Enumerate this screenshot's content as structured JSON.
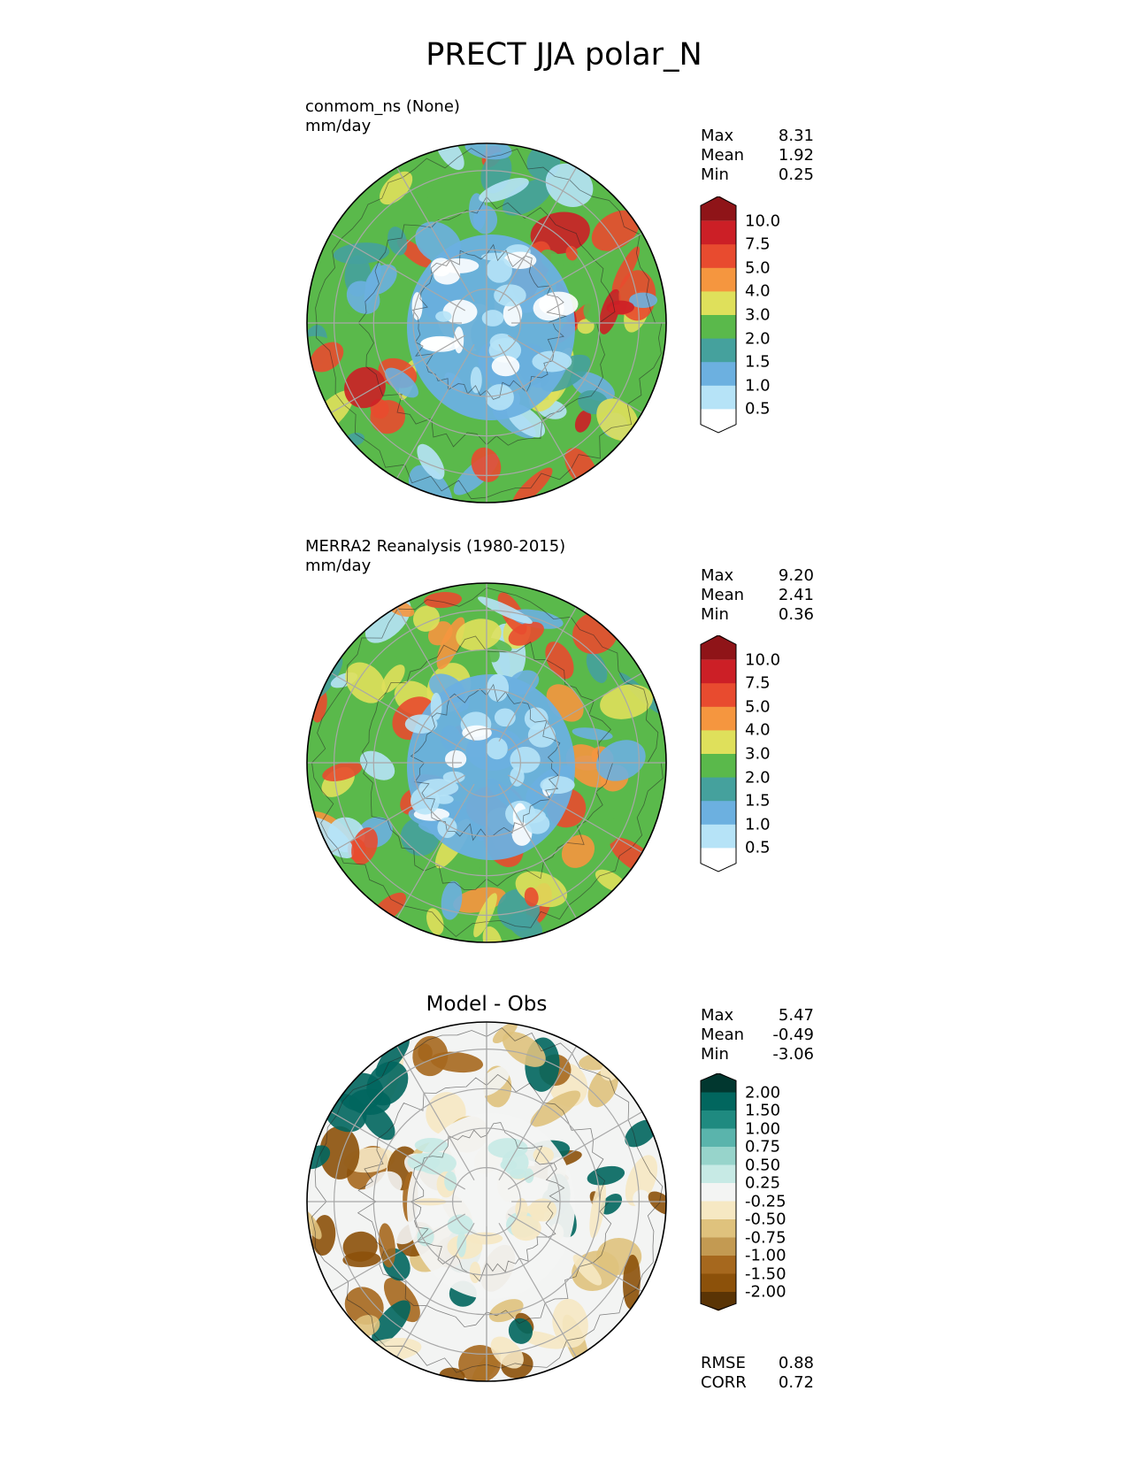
{
  "title": "PRECT JJA polar_N",
  "panels": [
    {
      "label_line1": "conmom_ns (None)",
      "label_line2": "mm/day",
      "title": "",
      "stats": [
        {
          "label": "Max",
          "value": "8.31"
        },
        {
          "label": "Mean",
          "value": "1.92"
        },
        {
          "label": "Min",
          "value": "0.25"
        }
      ],
      "colorbar": {
        "ticks": [
          "10.0",
          "7.5",
          "5.0",
          "4.0",
          "3.0",
          "2.0",
          "1.5",
          "1.0",
          "0.5"
        ],
        "colors": [
          "#8f1418",
          "#cc1f26",
          "#e84b2f",
          "#f5963f",
          "#dfe05b",
          "#5ab94b",
          "#45a19d",
          "#6cb0e0",
          "#b6e3f7",
          "#ffffff"
        ]
      },
      "dominant_colors": [
        "#5ab94b",
        "#6cb0e0",
        "#b6e3f7",
        "#45a19d",
        "#dfe05b",
        "#e84b2f",
        "#cc1f26"
      ]
    },
    {
      "label_line1": "MERRA2 Reanalysis (1980-2015)",
      "label_line2": "mm/day",
      "title": "",
      "stats": [
        {
          "label": "Max",
          "value": "9.20"
        },
        {
          "label": "Mean",
          "value": "2.41"
        },
        {
          "label": "Min",
          "value": "0.36"
        }
      ],
      "colorbar": {
        "ticks": [
          "10.0",
          "7.5",
          "5.0",
          "4.0",
          "3.0",
          "2.0",
          "1.5",
          "1.0",
          "0.5"
        ],
        "colors": [
          "#8f1418",
          "#cc1f26",
          "#e84b2f",
          "#f5963f",
          "#dfe05b",
          "#5ab94b",
          "#45a19d",
          "#6cb0e0",
          "#b6e3f7",
          "#ffffff"
        ]
      },
      "dominant_colors": [
        "#5ab94b",
        "#6cb0e0",
        "#dfe05b",
        "#45a19d",
        "#f5963f",
        "#e84b2f",
        "#b6e3f7"
      ]
    },
    {
      "label_line1": "",
      "label_line2": "",
      "title": "Model - Obs",
      "stats": [
        {
          "label": "Max",
          "value": "5.47"
        },
        {
          "label": "Mean",
          "value": "-0.49"
        },
        {
          "label": "Min",
          "value": "-3.06"
        }
      ],
      "extra_stats": [
        {
          "label": "RMSE",
          "value": "0.88"
        },
        {
          "label": "CORR",
          "value": "0.72"
        }
      ],
      "colorbar": {
        "ticks": [
          "2.00",
          "1.50",
          "1.00",
          "0.75",
          "0.50",
          "0.25",
          "-0.25",
          "-0.50",
          "-0.75",
          "-1.00",
          "-1.50",
          "-2.00"
        ],
        "colors": [
          "#01372f",
          "#01665e",
          "#1f8a80",
          "#5ab4ac",
          "#97d4cb",
          "#c7eae5",
          "#f3f4f3",
          "#f6e8c3",
          "#dfc27d",
          "#c39a52",
          "#a6681e",
          "#8c510a",
          "#5a3405"
        ]
      },
      "dominant_colors": [
        "#f3f4f3",
        "#f6e8c3",
        "#dfc27d",
        "#a6681e",
        "#8c510a",
        "#01665e"
      ]
    }
  ]
}
